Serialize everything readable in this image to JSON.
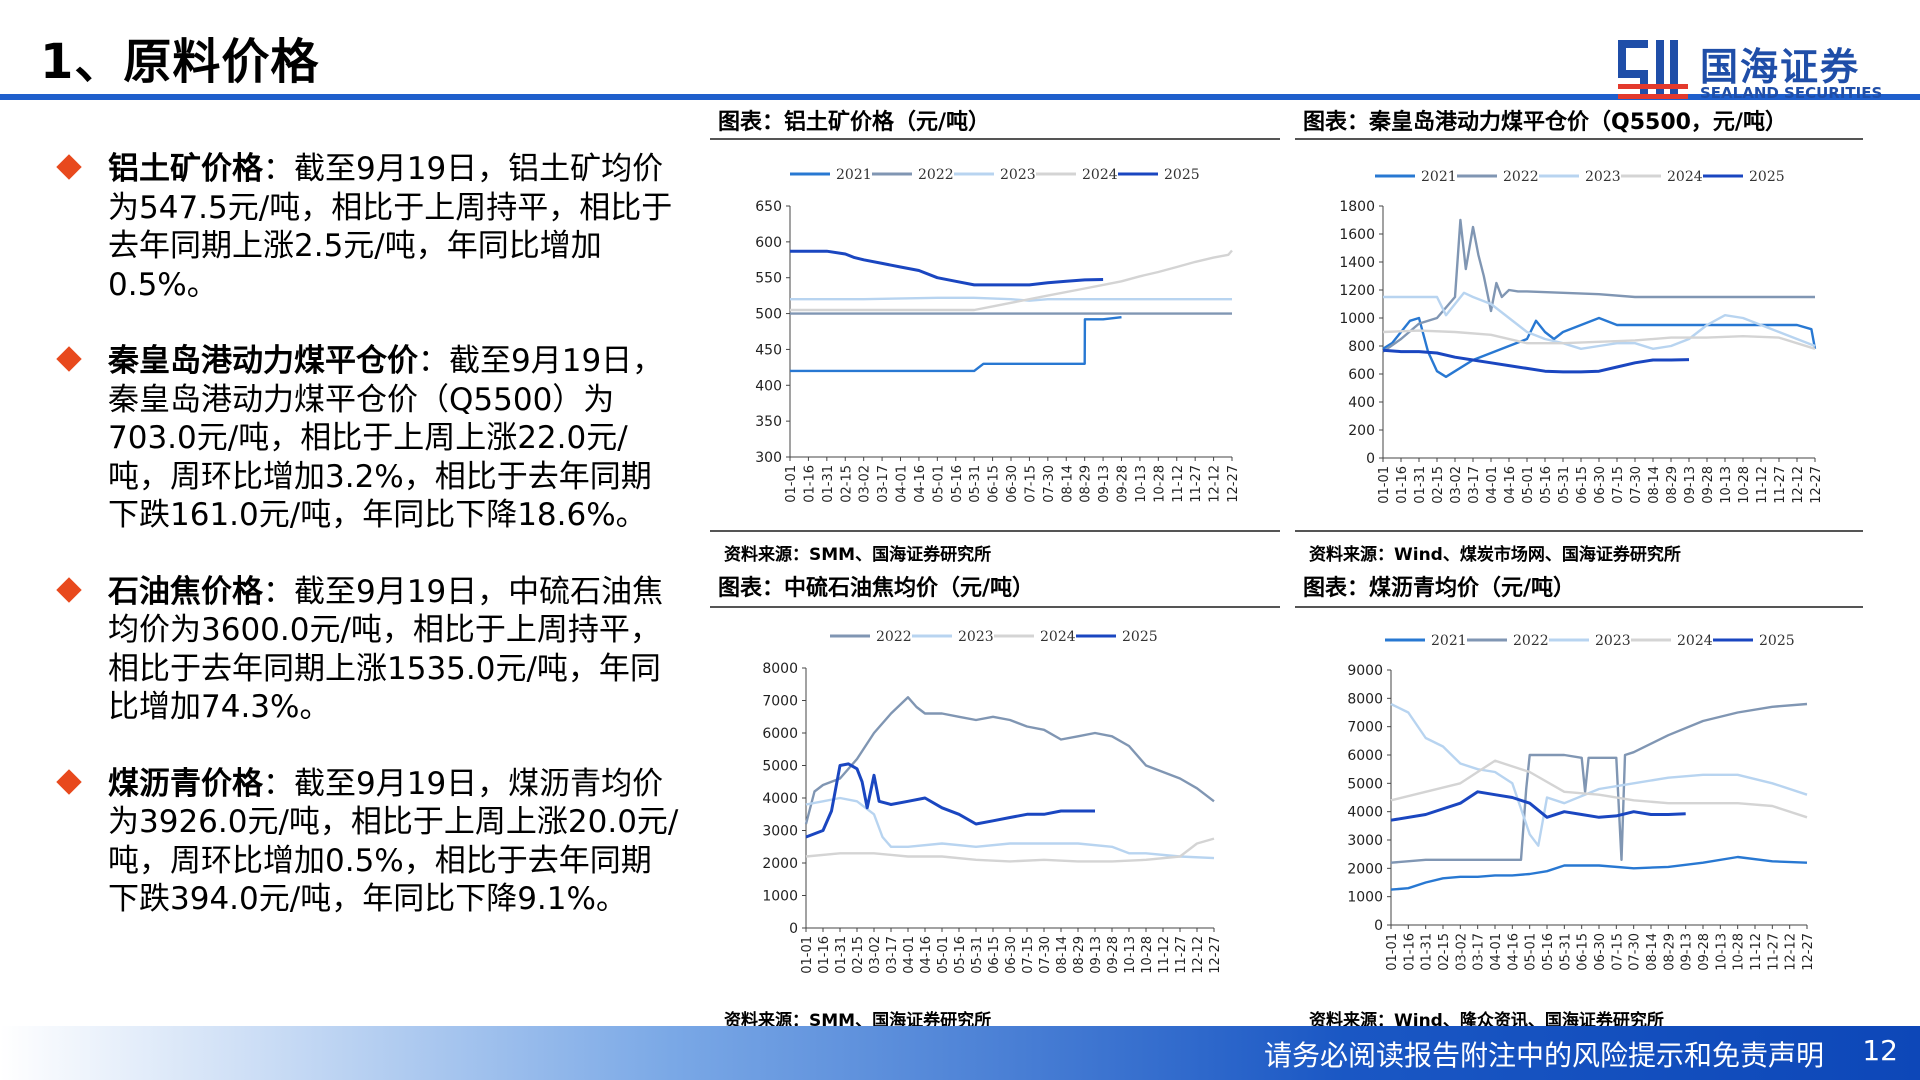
{
  "header": {
    "title": "1、原料价格"
  },
  "logo": {
    "name_cn": "国海证券",
    "name_en": "SEALAND SECURITIES"
  },
  "bullets": [
    {
      "label": "铝土矿价格",
      "text": "：截至9月19日，铝土矿均价为547.5元/吨，相比于上周持平，相比于去年同期上涨2.5元/吨，年同比增加0.5%。"
    },
    {
      "label": "秦皇岛港动力煤平仓价",
      "text": "：截至9月19日，秦皇岛港动力煤平仓价（Q5500）为703.0元/吨，相比于上周上涨22.0元/吨，周环比增加3.2%，相比于去年同期下跌161.0元/吨，年同比下降18.6%。"
    },
    {
      "label": "石油焦价格",
      "text": "：截至9月19日，中硫石油焦均价为3600.0元/吨，相比于上周持平，相比于去年同期上涨1535.0元/吨，年同比增加74.3%。"
    },
    {
      "label": "煤沥青价格",
      "text": "：截至9月19日，煤沥青均价为3926.0元/吨，相比于上周上涨20.0元/吨，周环比增加0.5%，相比于去年同期下跌394.0元/吨，年同比下降9.1%。"
    }
  ],
  "footer": {
    "disclaimer": "请务必阅读报告附注中的风险提示和免责声明",
    "page": "12"
  },
  "colors": {
    "2021": "#2878d2",
    "2022": "#8096b3",
    "2023": "#b8d4f0",
    "2024": "#d4d4d4",
    "2025": "#1a46c0"
  },
  "chart_data": [
    {
      "type": "line",
      "title": "图表：铝土矿价格（元/吨）",
      "source": "资料来源：SMM、国海证券研究所",
      "ylim": [
        300,
        650
      ],
      "yticks": [
        300,
        350,
        400,
        450,
        500,
        550,
        600,
        650
      ],
      "categories": [
        "01-01",
        "01-16",
        "01-31",
        "02-15",
        "03-02",
        "03-17",
        "04-01",
        "04-16",
        "05-01",
        "05-16",
        "05-31",
        "06-15",
        "06-30",
        "07-15",
        "07-30",
        "08-14",
        "08-29",
        "09-13",
        "09-28",
        "10-13",
        "10-28",
        "11-12",
        "11-27",
        "12-12",
        "12-27"
      ],
      "series": [
        {
          "name": "2021",
          "x": [
            0,
            1,
            2,
            3,
            4,
            5,
            6,
            7,
            8,
            9,
            10,
            10.5,
            11,
            12,
            13,
            14,
            15,
            16,
            16.01,
            16.5,
            17,
            18
          ],
          "y": [
            420,
            420,
            420,
            420,
            420,
            420,
            420,
            420,
            420,
            420,
            420,
            430,
            430,
            430,
            430,
            430,
            430,
            430,
            492,
            492,
            492,
            495
          ]
        },
        {
          "name": "2022",
          "x": [
            0,
            24
          ],
          "y": [
            500,
            500
          ]
        },
        {
          "name": "2023",
          "x": [
            0,
            4,
            8,
            10,
            12,
            13,
            14,
            17,
            20,
            22,
            24
          ],
          "y": [
            520,
            520,
            522,
            522,
            520,
            518,
            520,
            520,
            520,
            520,
            520
          ]
        },
        {
          "name": "2024",
          "x": [
            0,
            4,
            7,
            9,
            10,
            11,
            12,
            13,
            14,
            16,
            17,
            18,
            19,
            20,
            21,
            22,
            23,
            23.8,
            24
          ],
          "y": [
            505,
            505,
            505,
            505,
            505,
            510,
            515,
            520,
            525,
            535,
            540,
            545,
            552,
            558,
            565,
            572,
            578,
            582,
            588
          ]
        },
        {
          "name": "2025",
          "x": [
            0,
            1,
            2,
            3,
            3.5,
            4,
            5,
            6,
            7,
            8,
            9,
            10,
            11,
            12,
            13,
            14,
            15,
            16,
            17
          ],
          "y": [
            587,
            587,
            587,
            583,
            578,
            575,
            570,
            565,
            560,
            550,
            545,
            540,
            540,
            540,
            540,
            543,
            545,
            547,
            547.5
          ]
        }
      ]
    },
    {
      "type": "line",
      "title": "图表：秦皇岛港动力煤平仓价（Q5500，元/吨）",
      "source": "资料来源：Wind、煤炭市场网、国海证券研究所",
      "ylim": [
        0,
        1800
      ],
      "yticks": [
        0,
        200,
        400,
        600,
        800,
        1000,
        1200,
        1400,
        1600,
        1800
      ],
      "categories": [
        "01-01",
        "01-16",
        "01-31",
        "02-15",
        "03-02",
        "03-17",
        "04-01",
        "04-16",
        "05-01",
        "05-16",
        "05-31",
        "06-15",
        "06-30",
        "07-15",
        "07-30",
        "08-14",
        "08-29",
        "09-13",
        "09-28",
        "10-13",
        "10-28",
        "11-12",
        "11-27",
        "12-12",
        "12-27"
      ],
      "series": [
        {
          "name": "2021",
          "x": [
            0,
            0.5,
            1,
            1.5,
            2,
            2.5,
            3,
            3.5,
            4,
            5,
            6,
            7,
            8,
            8.5,
            9,
            9.5,
            10,
            11,
            12,
            13,
            14,
            15,
            16,
            18,
            20,
            22,
            23,
            23.8,
            24
          ],
          "y": [
            780,
            820,
            900,
            980,
            1000,
            760,
            620,
            580,
            620,
            700,
            750,
            800,
            850,
            980,
            900,
            850,
            900,
            950,
            1000,
            950,
            950,
            950,
            950,
            950,
            950,
            950,
            950,
            920,
            780
          ]
        },
        {
          "name": "2022",
          "x": [
            0,
            1,
            2,
            3,
            4,
            4.3,
            4.6,
            5,
            5.3,
            5.6,
            6,
            6.3,
            6.6,
            7,
            7.5,
            8,
            10,
            12,
            14,
            16,
            18,
            20,
            22,
            24
          ],
          "y": [
            760,
            850,
            960,
            1000,
            1150,
            1700,
            1350,
            1650,
            1450,
            1300,
            1050,
            1250,
            1150,
            1200,
            1190,
            1190,
            1180,
            1170,
            1150,
            1150,
            1150,
            1150,
            1150,
            1150
          ]
        },
        {
          "name": "2023",
          "x": [
            0,
            1,
            2,
            3,
            3.5,
            4,
            4.5,
            5,
            6,
            7,
            8,
            9,
            10,
            11,
            12,
            13,
            14,
            15,
            16,
            17,
            18,
            19,
            20,
            21,
            22,
            23,
            24
          ],
          "y": [
            1150,
            1150,
            1150,
            1150,
            1020,
            1100,
            1180,
            1150,
            1100,
            1000,
            900,
            850,
            820,
            780,
            800,
            820,
            820,
            780,
            800,
            850,
            950,
            1020,
            1000,
            950,
            900,
            850,
            800
          ]
        },
        {
          "name": "2024",
          "x": [
            0,
            2,
            4,
            6,
            8,
            10,
            12,
            14,
            16,
            18,
            20,
            22,
            24
          ],
          "y": [
            900,
            910,
            900,
            880,
            820,
            820,
            830,
            840,
            860,
            860,
            870,
            860,
            780
          ]
        },
        {
          "name": "2025",
          "x": [
            0,
            1,
            2,
            3,
            4,
            5,
            6,
            7,
            8,
            9,
            10,
            11,
            12,
            13,
            14,
            15,
            16,
            17
          ],
          "y": [
            770,
            760,
            760,
            750,
            720,
            700,
            680,
            660,
            640,
            620,
            615,
            615,
            620,
            650,
            680,
            700,
            700,
            703
          ]
        }
      ]
    },
    {
      "type": "line",
      "title": "图表：中硫石油焦均价（元/吨）",
      "source": "资料来源：SMM、国海证券研究所",
      "ylim": [
        0,
        8000
      ],
      "yticks": [
        0,
        1000,
        2000,
        3000,
        4000,
        5000,
        6000,
        7000,
        8000
      ],
      "categories": [
        "01-01",
        "01-16",
        "01-31",
        "02-15",
        "03-02",
        "03-17",
        "04-01",
        "04-16",
        "05-01",
        "05-16",
        "05-31",
        "06-15",
        "06-30",
        "07-15",
        "07-30",
        "08-14",
        "08-29",
        "09-13",
        "09-28",
        "10-13",
        "10-28",
        "11-12",
        "11-27",
        "12-12",
        "12-27"
      ],
      "series": [
        {
          "name": "2022",
          "x": [
            0,
            0.5,
            1,
            2,
            3,
            4,
            5,
            6,
            6.5,
            7,
            8,
            9,
            10,
            11,
            12,
            13,
            14,
            15,
            16,
            17,
            18,
            19,
            20,
            21,
            22,
            23,
            24
          ],
          "y": [
            3200,
            4200,
            4400,
            4600,
            5200,
            6000,
            6600,
            7100,
            6800,
            6600,
            6600,
            6500,
            6400,
            6500,
            6400,
            6200,
            6100,
            5800,
            5900,
            6000,
            5900,
            5600,
            5000,
            4800,
            4600,
            4300,
            3900
          ]
        },
        {
          "name": "2023",
          "x": [
            0,
            1,
            2,
            3,
            4,
            4.5,
            5,
            6,
            8,
            10,
            12,
            14,
            16,
            18,
            19,
            20,
            22,
            24
          ],
          "y": [
            3800,
            3900,
            4000,
            3900,
            3500,
            2800,
            2500,
            2500,
            2600,
            2500,
            2600,
            2600,
            2600,
            2500,
            2300,
            2300,
            2200,
            2150
          ]
        },
        {
          "name": "2024",
          "x": [
            0,
            2,
            4,
            6,
            8,
            10,
            12,
            14,
            16,
            18,
            20,
            22,
            23,
            24
          ],
          "y": [
            2200,
            2300,
            2300,
            2200,
            2200,
            2100,
            2050,
            2100,
            2050,
            2050,
            2100,
            2200,
            2600,
            2750
          ]
        },
        {
          "name": "2025",
          "x": [
            0,
            1,
            1.5,
            2,
            2.5,
            3,
            3.3,
            3.6,
            4,
            4.3,
            5,
            6,
            7,
            8,
            9,
            10,
            11,
            12,
            13,
            14,
            15,
            16,
            17
          ],
          "y": [
            2800,
            3000,
            3600,
            5000,
            5050,
            4900,
            4500,
            3700,
            4700,
            3900,
            3800,
            3900,
            4000,
            3700,
            3500,
            3200,
            3300,
            3400,
            3500,
            3500,
            3600,
            3600,
            3600
          ]
        }
      ]
    },
    {
      "type": "line",
      "title": "图表：煤沥青均价（元/吨）",
      "source": "资料来源：Wind、隆众资讯、国海证券研究所",
      "ylim": [
        0,
        9000
      ],
      "yticks": [
        0,
        1000,
        2000,
        3000,
        4000,
        5000,
        6000,
        7000,
        8000,
        9000
      ],
      "categories": [
        "01-01",
        "01-16",
        "01-31",
        "02-15",
        "03-02",
        "03-17",
        "04-01",
        "04-16",
        "05-01",
        "05-16",
        "05-31",
        "06-15",
        "06-30",
        "07-15",
        "07-30",
        "08-14",
        "08-29",
        "09-13",
        "09-28",
        "10-13",
        "10-28",
        "11-12",
        "11-27",
        "12-12",
        "12-27"
      ],
      "series": [
        {
          "name": "2021",
          "x": [
            0,
            1,
            2,
            3,
            4,
            5,
            6,
            7,
            8,
            9,
            10,
            12,
            14,
            16,
            18,
            20,
            22,
            24
          ],
          "y": [
            1250,
            1300,
            1500,
            1650,
            1700,
            1700,
            1750,
            1750,
            1800,
            1900,
            2100,
            2100,
            2000,
            2050,
            2200,
            2400,
            2250,
            2200
          ]
        },
        {
          "name": "2022",
          "x": [
            0,
            2,
            4,
            6,
            7.5,
            7.8,
            8,
            10,
            11,
            11.2,
            11.4,
            13,
            13.3,
            13.5,
            14,
            16,
            18,
            20,
            22,
            24
          ],
          "y": [
            2200,
            2300,
            2300,
            2300,
            2300,
            4800,
            6000,
            6000,
            5900,
            4700,
            5900,
            5900,
            2300,
            6000,
            6100,
            6700,
            7200,
            7500,
            7700,
            7800
          ]
        },
        {
          "name": "2023",
          "x": [
            0,
            1,
            2,
            3,
            4,
            5,
            6,
            7,
            8,
            8.5,
            9,
            10,
            12,
            14,
            16,
            18,
            20,
            22,
            24
          ],
          "y": [
            7800,
            7500,
            6600,
            6300,
            5700,
            5500,
            5400,
            5000,
            3200,
            2800,
            4500,
            4300,
            4800,
            5000,
            5200,
            5300,
            5300,
            5000,
            4600
          ]
        },
        {
          "name": "2024",
          "x": [
            0,
            2,
            4,
            6,
            8,
            10,
            12,
            14,
            16,
            18,
            20,
            22,
            24
          ],
          "y": [
            4400,
            4700,
            5000,
            5800,
            5400,
            4700,
            4600,
            4400,
            4300,
            4300,
            4300,
            4200,
            3800
          ]
        },
        {
          "name": "2025",
          "x": [
            0,
            2,
            4,
            5,
            6,
            7,
            8,
            9,
            10,
            11,
            12,
            13,
            14,
            15,
            16,
            17
          ],
          "y": [
            3700,
            3900,
            4300,
            4700,
            4600,
            4500,
            4300,
            3800,
            4000,
            3900,
            3800,
            3850,
            4000,
            3900,
            3900,
            3926
          ]
        }
      ]
    }
  ]
}
